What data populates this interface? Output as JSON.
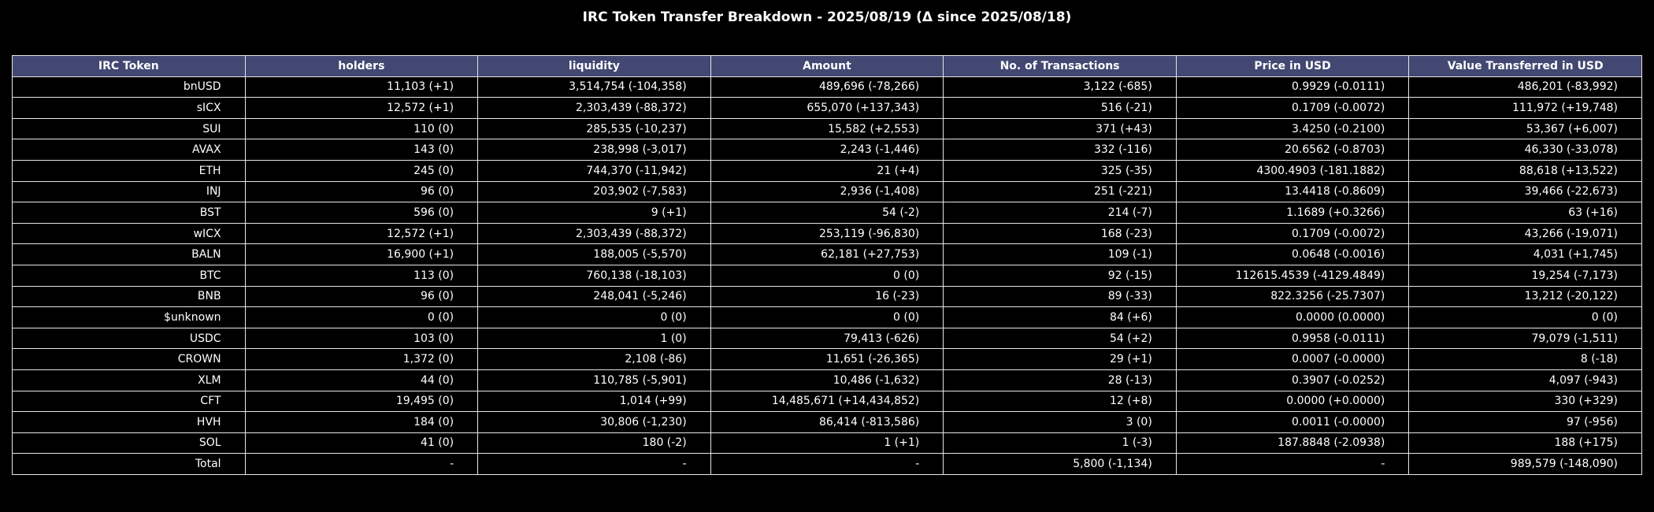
{
  "title": "IRC Token Transfer Breakdown - 2025/08/19 (Δ since 2025/08/18)",
  "colors": {
    "header_bg": "#424872",
    "background": "#000000",
    "border": "#e6e6e6"
  },
  "columns": [
    "IRC Token",
    "holders",
    "liquidity",
    "Amount",
    "No. of Transactions",
    "Price in USD",
    "Value Transferred in USD"
  ],
  "rows": [
    [
      "bnUSD",
      "11,103 (+1)",
      "3,514,754 (-104,358)",
      "489,696 (-78,266)",
      "3,122 (-685)",
      "0.9929 (-0.0111)",
      "486,201 (-83,992)"
    ],
    [
      "sICX",
      "12,572 (+1)",
      "2,303,439 (-88,372)",
      "655,070 (+137,343)",
      "516 (-21)",
      "0.1709 (-0.0072)",
      "111,972 (+19,748)"
    ],
    [
      "SUI",
      "110 (0)",
      "285,535 (-10,237)",
      "15,582 (+2,553)",
      "371 (+43)",
      "3.4250 (-0.2100)",
      "53,367 (+6,007)"
    ],
    [
      "AVAX",
      "143 (0)",
      "238,998 (-3,017)",
      "2,243 (-1,446)",
      "332 (-116)",
      "20.6562 (-0.8703)",
      "46,330 (-33,078)"
    ],
    [
      "ETH",
      "245 (0)",
      "744,370 (-11,942)",
      "21 (+4)",
      "325 (-35)",
      "4300.4903 (-181.1882)",
      "88,618 (+13,522)"
    ],
    [
      "INJ",
      "96 (0)",
      "203,902 (-7,583)",
      "2,936 (-1,408)",
      "251 (-221)",
      "13.4418 (-0.8609)",
      "39,466 (-22,673)"
    ],
    [
      "BST",
      "596 (0)",
      "9 (+1)",
      "54 (-2)",
      "214 (-7)",
      "1.1689 (+0.3266)",
      "63 (+16)"
    ],
    [
      "wICX",
      "12,572 (+1)",
      "2,303,439 (-88,372)",
      "253,119 (-96,830)",
      "168 (-23)",
      "0.1709 (-0.0072)",
      "43,266 (-19,071)"
    ],
    [
      "BALN",
      "16,900 (+1)",
      "188,005 (-5,570)",
      "62,181 (+27,753)",
      "109 (-1)",
      "0.0648 (-0.0016)",
      "4,031 (+1,745)"
    ],
    [
      "BTC",
      "113 (0)",
      "760,138 (-18,103)",
      "0 (0)",
      "92 (-15)",
      "112615.4539 (-4129.4849)",
      "19,254 (-7,173)"
    ],
    [
      "BNB",
      "96 (0)",
      "248,041 (-5,246)",
      "16 (-23)",
      "89 (-33)",
      "822.3256 (-25.7307)",
      "13,212 (-20,122)"
    ],
    [
      "$unknown",
      "0 (0)",
      "0 (0)",
      "0 (0)",
      "84 (+6)",
      "0.0000 (0.0000)",
      "0 (0)"
    ],
    [
      "USDC",
      "103 (0)",
      "1 (0)",
      "79,413 (-626)",
      "54 (+2)",
      "0.9958 (-0.0111)",
      "79,079 (-1,511)"
    ],
    [
      "CROWN",
      "1,372 (0)",
      "2,108 (-86)",
      "11,651 (-26,365)",
      "29 (+1)",
      "0.0007 (-0.0000)",
      "8 (-18)"
    ],
    [
      "XLM",
      "44 (0)",
      "110,785 (-5,901)",
      "10,486 (-1,632)",
      "28 (-13)",
      "0.3907 (-0.0252)",
      "4,097 (-943)"
    ],
    [
      "CFT",
      "19,495 (0)",
      "1,014 (+99)",
      "14,485,671 (+14,434,852)",
      "12 (+8)",
      "0.0000 (+0.0000)",
      "330 (+329)"
    ],
    [
      "HVH",
      "184 (0)",
      "30,806 (-1,230)",
      "86,414 (-813,586)",
      "3 (0)",
      "0.0011 (-0.0000)",
      "97 (-956)"
    ],
    [
      "SOL",
      "41 (0)",
      "180 (-2)",
      "1 (+1)",
      "1 (-3)",
      "187.8848 (-2.0938)",
      "188 (+175)"
    ],
    [
      "Total",
      "-",
      "-",
      "-",
      "5,800 (-1,134)",
      "-",
      "989,579 (-148,090)"
    ]
  ]
}
